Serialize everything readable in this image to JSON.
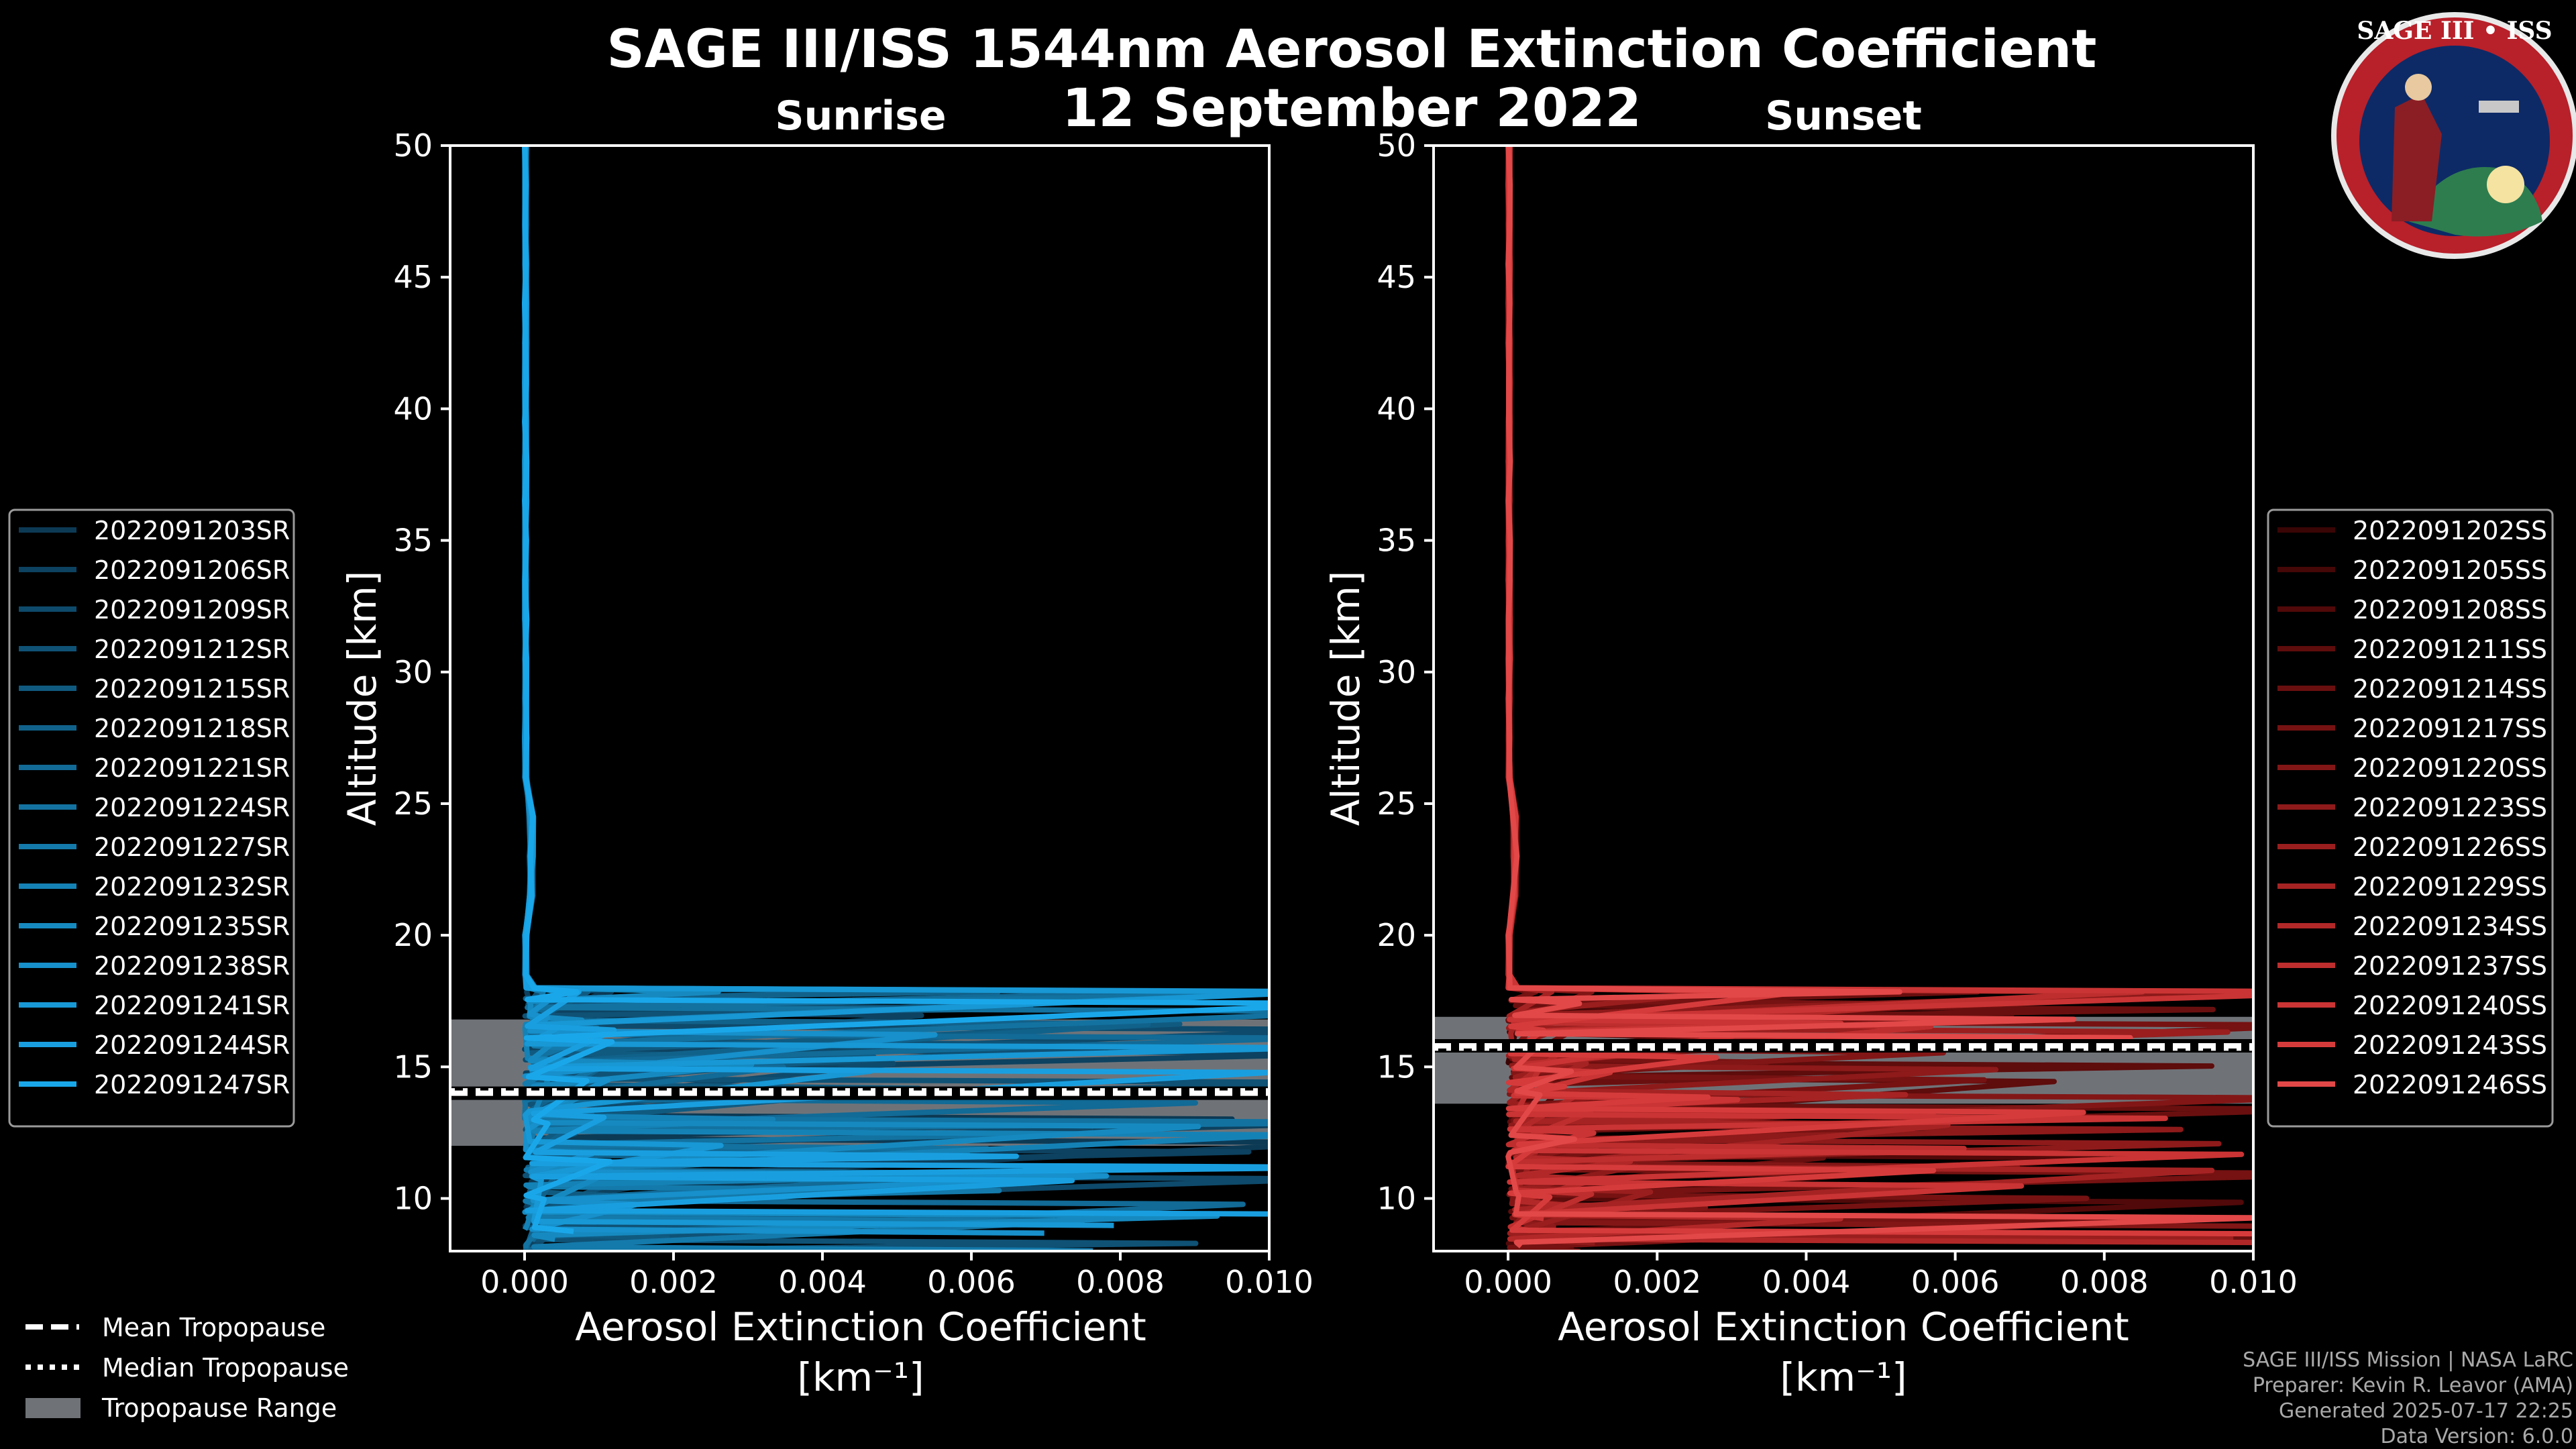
{
  "title_line1": "SAGE III/ISS 1544nm Aerosol Extinction Coefficient",
  "title_line2": "12 September 2022",
  "xlabel_line1": "Aerosol Extinction Coefficient",
  "xlabel_line2": "[km⁻¹]",
  "credits": [
    "SAGE III/ISS Mission | NASA LaRC",
    "Preparer: Kevin R. Leavor (AMA)",
    "Generated 2025-07-17 22:25",
    "Data Version: 6.0.0"
  ],
  "tropopause_legend": [
    {
      "label": "Mean Tropopause",
      "style": "dashed"
    },
    {
      "label": "Median Tropopause",
      "style": "dotted"
    },
    {
      "label": "Tropopause Range",
      "style": "patch"
    }
  ],
  "logo": {
    "text": "SAGE III • ISS"
  },
  "chart_data": [
    {
      "type": "line",
      "title": "Sunrise",
      "xlabel": "Aerosol Extinction Coefficient [km⁻¹]",
      "ylabel": "Altitude [km]",
      "xlim": [
        -0.001,
        0.01
      ],
      "ylim": [
        8,
        50
      ],
      "xticks": [
        "0.000",
        "0.002",
        "0.004",
        "0.006",
        "0.008",
        "0.010"
      ],
      "xtick_values": [
        0,
        0.002,
        0.004,
        0.006,
        0.008,
        0.01
      ],
      "yticks": [
        10,
        15,
        20,
        25,
        30,
        35,
        40,
        45,
        50
      ],
      "tropopause": {
        "mean": 14.0,
        "median": 14.1,
        "range": [
          12.0,
          16.8
        ]
      },
      "legend_colors": [
        "#0c3a55",
        "#0d4260",
        "#0e4a6b",
        "#0f5276",
        "#105a80",
        "#11628b",
        "#126a96",
        "#1372a0",
        "#147aab",
        "#1582b6",
        "#168ac0",
        "#1790cb",
        "#1898d5",
        "#199fe0",
        "#1aa7ea"
      ],
      "series": [
        {
          "name": "2022091203SR"
        },
        {
          "name": "2022091206SR"
        },
        {
          "name": "2022091209SR"
        },
        {
          "name": "2022091212SR"
        },
        {
          "name": "2022091215SR"
        },
        {
          "name": "2022091218SR"
        },
        {
          "name": "2022091221SR"
        },
        {
          "name": "2022091224SR"
        },
        {
          "name": "2022091227SR"
        },
        {
          "name": "2022091232SR"
        },
        {
          "name": "2022091235SR"
        },
        {
          "name": "2022091238SR"
        },
        {
          "name": "2022091241SR"
        },
        {
          "name": "2022091244SR"
        },
        {
          "name": "2022091247SR"
        }
      ]
    },
    {
      "type": "line",
      "title": "Sunset",
      "xlabel": "Aerosol Extinction Coefficient [km⁻¹]",
      "ylabel": "Altitude [km]",
      "xlim": [
        -0.001,
        0.01
      ],
      "ylim": [
        8,
        50
      ],
      "xticks": [
        "0.000",
        "0.002",
        "0.004",
        "0.006",
        "0.008",
        "0.010"
      ],
      "xtick_values": [
        0,
        0.002,
        0.004,
        0.006,
        0.008,
        0.01
      ],
      "yticks": [
        10,
        15,
        20,
        25,
        30,
        35,
        40,
        45,
        50
      ],
      "tropopause": {
        "mean": 15.8,
        "median": 15.7,
        "range": [
          13.6,
          16.9
        ]
      },
      "legend_colors": [
        "#3a0505",
        "#460707",
        "#520909",
        "#5e0c0c",
        "#6a0f0f",
        "#761212",
        "#821616",
        "#8e1a1a",
        "#9a1e1e",
        "#a62323",
        "#b22828",
        "#be2e2e",
        "#ca3434",
        "#d63b3b",
        "#e24848"
      ],
      "series": [
        {
          "name": "2022091202SS"
        },
        {
          "name": "2022091205SS"
        },
        {
          "name": "2022091208SS"
        },
        {
          "name": "2022091211SS"
        },
        {
          "name": "2022091214SS"
        },
        {
          "name": "2022091217SS"
        },
        {
          "name": "2022091220SS"
        },
        {
          "name": "2022091223SS"
        },
        {
          "name": "2022091226SS"
        },
        {
          "name": "2022091229SS"
        },
        {
          "name": "2022091234SS"
        },
        {
          "name": "2022091237SS"
        },
        {
          "name": "2022091240SS"
        },
        {
          "name": "2022091243SS"
        },
        {
          "name": "2022091246SS"
        }
      ]
    }
  ]
}
